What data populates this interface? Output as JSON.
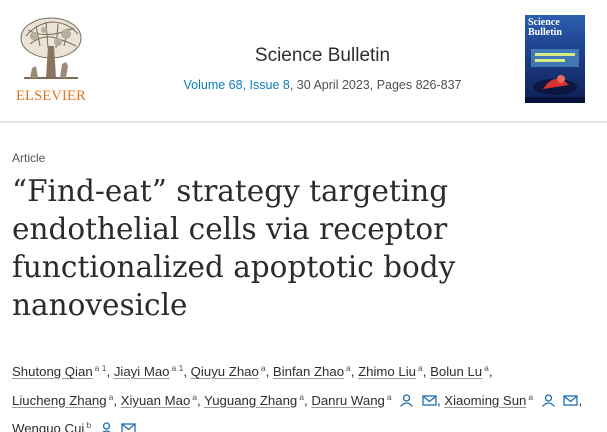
{
  "publisher": {
    "name": "ELSEVIER"
  },
  "journal": {
    "title": "Science Bulletin",
    "volume_issue": "Volume 68, Issue 8",
    "date_pages": ", 30 April 2023, Pages 826-837",
    "cover_title_line1": "Science",
    "cover_title_line2": "Bulletin"
  },
  "article": {
    "type": "Article",
    "title_lines": [
      "“Find-eat” strategy targeting",
      "endothelial cells via receptor",
      "functionalized apoptotic body",
      "nanovesicle"
    ]
  },
  "authors": [
    {
      "name": "Shutong Qian",
      "sup": "a 1"
    },
    {
      "name": "Jiayi Mao",
      "sup": "a 1"
    },
    {
      "name": "Qiuyu Zhao",
      "sup": "a"
    },
    {
      "name": "Binfan Zhao",
      "sup": "a"
    },
    {
      "name": "Zhimo Liu",
      "sup": "a"
    },
    {
      "name": "Bolun Lu",
      "sup": "a"
    },
    {
      "name": "Liucheng Zhang",
      "sup": "a"
    },
    {
      "name": "Xiyuan Mao",
      "sup": "a"
    },
    {
      "name": "Yuguang Zhang",
      "sup": "a"
    },
    {
      "name": "Danru Wang",
      "sup": "a"
    },
    {
      "name": "Xiaoming Sun",
      "sup": "a"
    },
    {
      "name": "Wenguo Cui",
      "sup": "b"
    }
  ],
  "colors": {
    "link": "#0c7dbb",
    "elsevier_orange": "#e9711c",
    "icon_blue": "#1f6fb2"
  },
  "icons": {
    "person": "person-icon",
    "envelope": "envelope-icon"
  }
}
